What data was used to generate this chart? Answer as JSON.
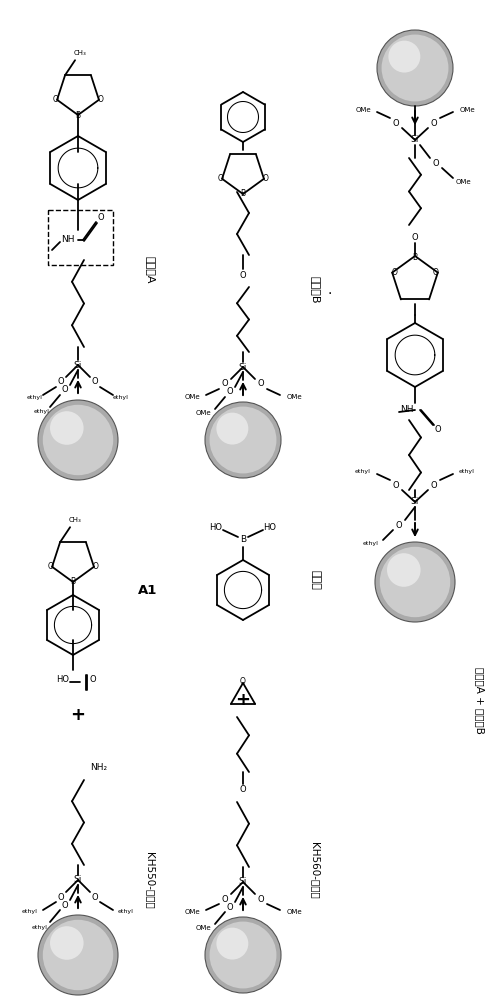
{
  "bg_color": "#ffffff",
  "lw": 1.3,
  "bond_color": "#000000",
  "sphere_fc": "#c0c0c0",
  "sphere_ec": "#555555",
  "label_A": "钓酸钓A",
  "label_B": "钓酸钓B",
  "label_A1": "A1",
  "label_kh550": "KH550-钓酸钓",
  "label_kh560": "KH560-钓酸钓",
  "label_benzene_acid": "苯硌酸",
  "label_final": "钓酸钓A + 钓酸钓B",
  "dashed_rect_style": "--"
}
